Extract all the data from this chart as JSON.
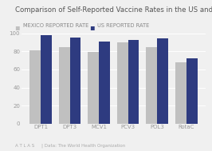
{
  "title": "Comparison of Self-Reported Vaccine Rates in the US and Mexico",
  "categories": [
    "DPT1",
    "DPT3",
    "MCV1",
    "PCV3",
    "POL3",
    "RotaC"
  ],
  "mexico_values": [
    81,
    85,
    79,
    90,
    85,
    68
  ],
  "us_values": [
    98,
    95,
    91,
    93,
    94,
    72
  ],
  "mexico_color": "#c0c0c0",
  "us_color": "#2e3b80",
  "legend_labels": [
    "MEXICO REPORTED RATE",
    "US REPORTED RATE"
  ],
  "ylim": [
    0,
    100
  ],
  "yticks": [
    0,
    20,
    40,
    60,
    80,
    100
  ],
  "background_color": "#f0f0f0",
  "title_fontsize": 6.2,
  "tick_fontsize": 5,
  "legend_fontsize": 4.8,
  "footer_text": "A T L A S     | Data: The World Health Organization",
  "footer_fontsize": 4.0
}
